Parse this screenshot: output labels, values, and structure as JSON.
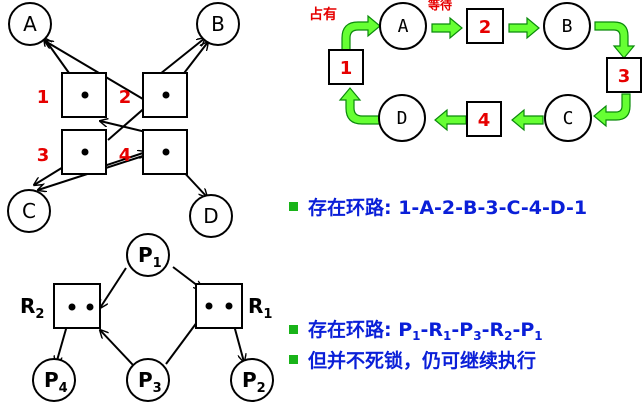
{
  "graph1": {
    "nodes": [
      {
        "id": "A",
        "label": "A"
      },
      {
        "id": "B",
        "label": "B"
      },
      {
        "id": "C",
        "label": "C"
      },
      {
        "id": "D",
        "label": "D"
      }
    ],
    "resources": [
      {
        "id": "1",
        "label": "1"
      },
      {
        "id": "2",
        "label": "2"
      },
      {
        "id": "3",
        "label": "3"
      },
      {
        "id": "4",
        "label": "4"
      }
    ]
  },
  "cycle_diagram": {
    "occupy_label": "占有",
    "wait_label": "等待",
    "nodes": [
      {
        "id": "A",
        "label": "A"
      },
      {
        "id": "B",
        "label": "B"
      },
      {
        "id": "C",
        "label": "C"
      },
      {
        "id": "D",
        "label": "D"
      }
    ],
    "resources": [
      {
        "id": "1",
        "label": "1"
      },
      {
        "id": "2",
        "label": "2"
      },
      {
        "id": "3",
        "label": "3"
      },
      {
        "id": "4",
        "label": "4"
      }
    ]
  },
  "graph2": {
    "processes": [
      {
        "id": "P1",
        "label": "P",
        "sub": "1"
      },
      {
        "id": "P2",
        "label": "P",
        "sub": "2"
      },
      {
        "id": "P3",
        "label": "P",
        "sub": "3"
      },
      {
        "id": "P4",
        "label": "P",
        "sub": "4"
      }
    ],
    "resources": [
      {
        "id": "R1",
        "label": "R",
        "sub": "1"
      },
      {
        "id": "R2",
        "label": "R",
        "sub": "2"
      }
    ]
  },
  "bullets": {
    "cycle1": "存在环路: 1-A-2-B-3-C-4-D-1",
    "cycle2_prefix": "存在环路: ",
    "cycle2_parts": [
      {
        "t": "P",
        "s": "1"
      },
      {
        "t": "-R",
        "s": "1"
      },
      {
        "t": "-P",
        "s": "3"
      },
      {
        "t": "-R",
        "s": "2"
      },
      {
        "t": "-P",
        "s": "1"
      }
    ],
    "note": "但并不死锁，仍可继续执行"
  },
  "colors": {
    "label_red": "#e60000",
    "text_blue": "#0a1fd8",
    "arrow_green": "#66ff33",
    "arrow_green_stroke": "#0a8a0a",
    "bullet_green": "#19b319"
  }
}
